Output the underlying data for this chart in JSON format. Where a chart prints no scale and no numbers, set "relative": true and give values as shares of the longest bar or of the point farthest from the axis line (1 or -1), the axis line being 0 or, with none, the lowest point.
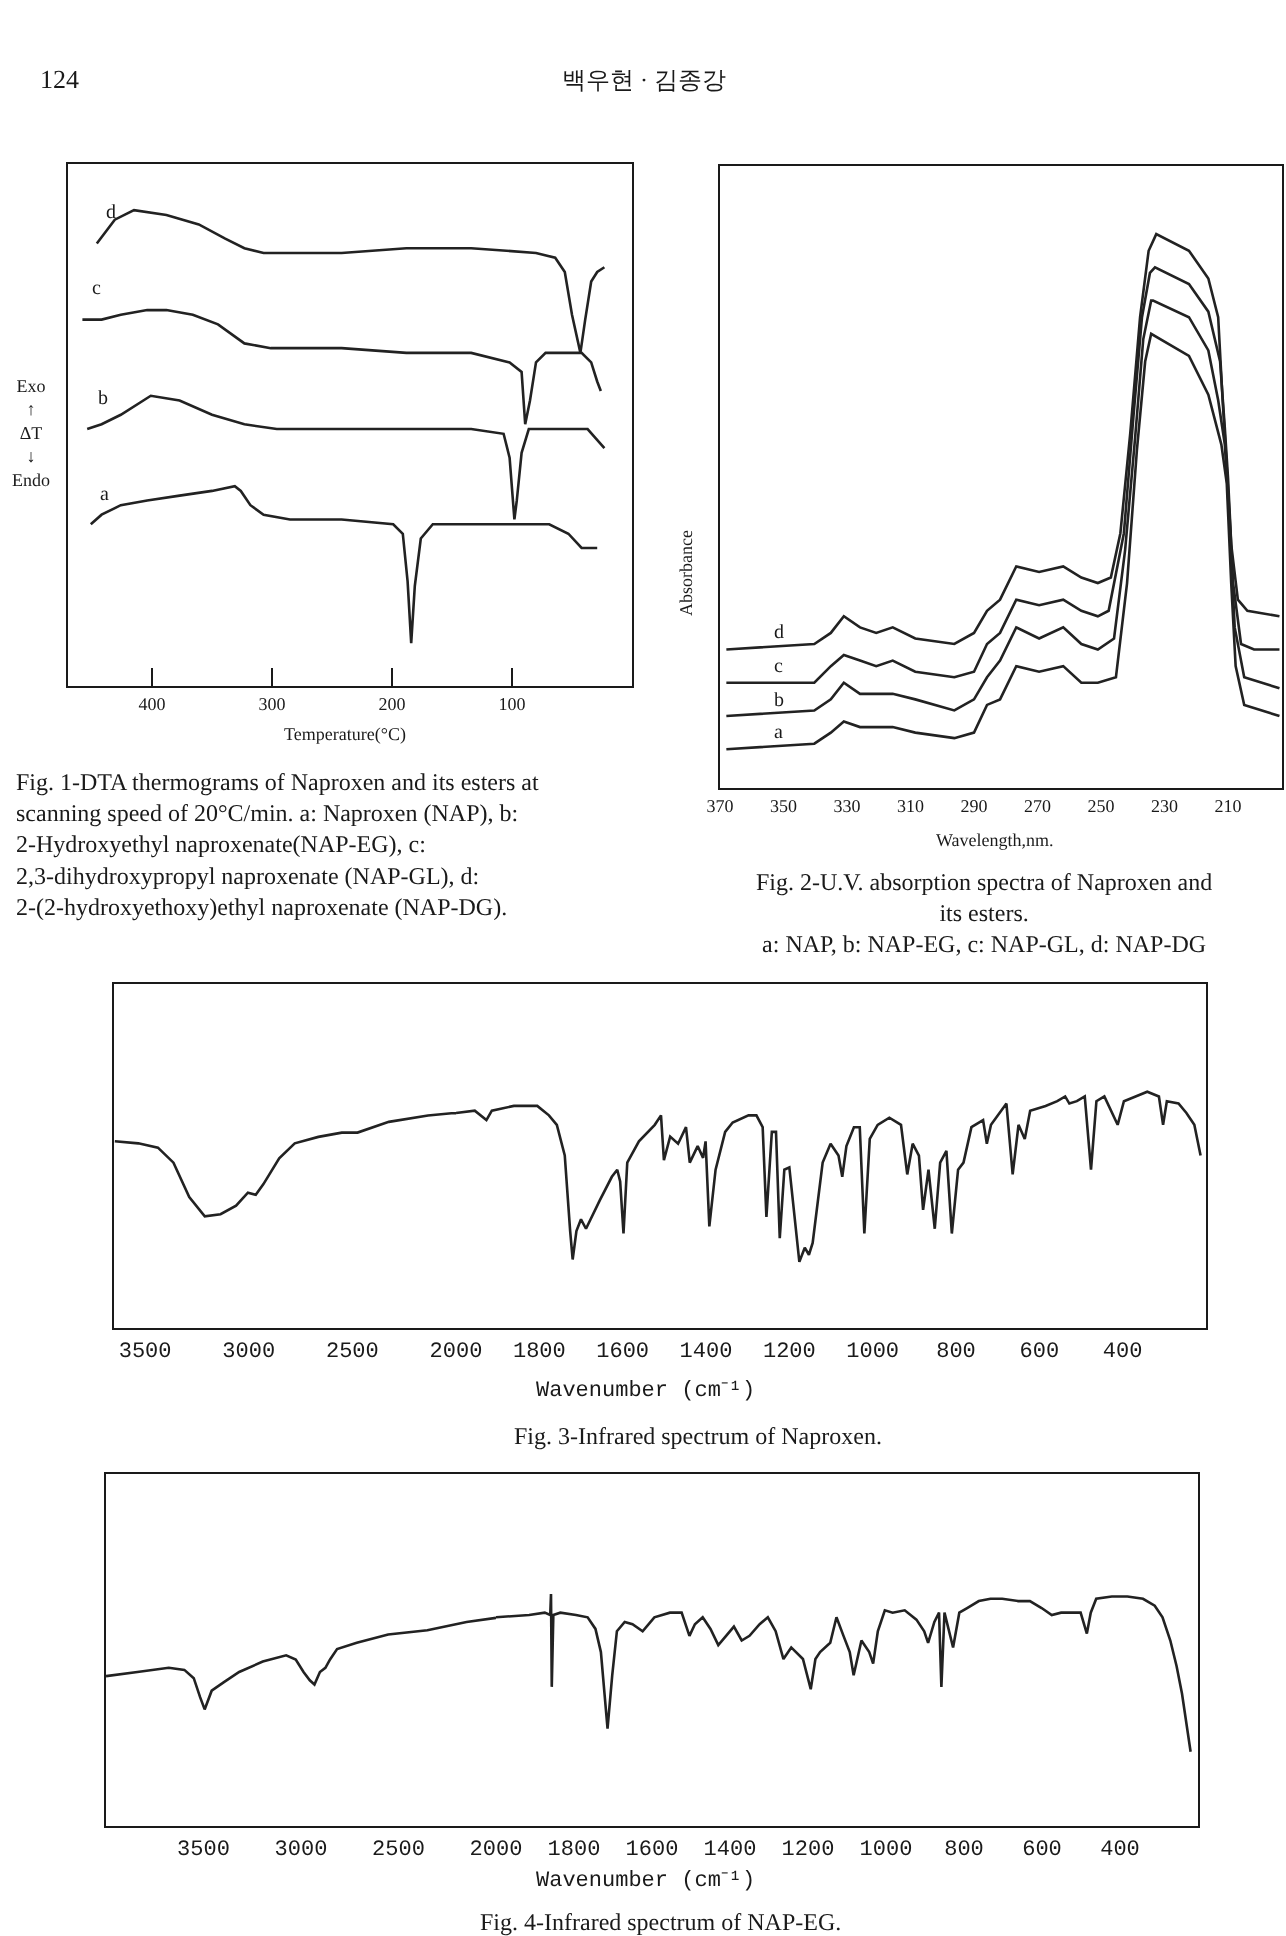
{
  "chart_data": [
    {
      "type": "other",
      "annotations": [
        "124",
        "백우현 · 김종강"
      ]
    },
    {
      "type": "line",
      "xlabel": "Temperature(°C)",
      "ylabel": "Exo\n↑\nΔT\n↓\nEndo",
      "xlim": [
        470,
        0
      ],
      "xticks": [
        400,
        300,
        200,
        100
      ],
      "relative": true,
      "series": [
        {
          "name": "a",
          "color": "#222222",
          "x": [
            451,
            442,
            426,
            404,
            377,
            350,
            331,
            326,
            318,
            307,
            285,
            242,
            199,
            191,
            187,
            184,
            181,
            176,
            166,
            134,
            69,
            53,
            42,
            29
          ],
          "values": [
            0.34,
            0.36,
            0.38,
            0.39,
            0.4,
            0.41,
            0.42,
            0.41,
            0.38,
            0.36,
            0.35,
            0.35,
            0.34,
            0.32,
            0.22,
            0.09,
            0.21,
            0.31,
            0.34,
            0.34,
            0.34,
            0.32,
            0.29,
            0.29
          ]
        },
        {
          "name": "b",
          "color": "#222222",
          "x": [
            454,
            442,
            426,
            401,
            377,
            350,
            323,
            296,
            242,
            188,
            134,
            107,
            102,
            98,
            96,
            92,
            86,
            80,
            37,
            30,
            23
          ],
          "values": [
            0.54,
            0.55,
            0.57,
            0.61,
            0.6,
            0.57,
            0.55,
            0.54,
            0.54,
            0.54,
            0.54,
            0.53,
            0.48,
            0.35,
            0.39,
            0.49,
            0.54,
            0.54,
            0.54,
            0.52,
            0.5
          ]
        },
        {
          "name": "c",
          "color": "#222222",
          "x": [
            458,
            442,
            426,
            404,
            388,
            366,
            345,
            323,
            301,
            242,
            188,
            134,
            102,
            92,
            89,
            85,
            80,
            72,
            42,
            34,
            29,
            26
          ],
          "values": [
            0.77,
            0.77,
            0.78,
            0.79,
            0.79,
            0.78,
            0.76,
            0.72,
            0.71,
            0.71,
            0.7,
            0.7,
            0.68,
            0.66,
            0.55,
            0.6,
            0.68,
            0.7,
            0.7,
            0.68,
            0.64,
            0.62
          ]
        },
        {
          "name": "d",
          "color": "#222222",
          "x": [
            446,
            431,
            415,
            388,
            361,
            339,
            323,
            307,
            242,
            188,
            134,
            80,
            64,
            56,
            50,
            43,
            39,
            34,
            29,
            23
          ],
          "values": [
            0.93,
            0.98,
            1.0,
            0.99,
            0.97,
            0.94,
            0.92,
            0.91,
            0.91,
            0.92,
            0.92,
            0.91,
            0.9,
            0.87,
            0.78,
            0.7,
            0.77,
            0.85,
            0.87,
            0.88
          ]
        }
      ],
      "annotations": [
        "Fig. 1-DTA thermograms of Naproxen and its esters at scanning speed of 20°C/min. a: Naproxen (NAP), b: 2-Hydroxyethyl naproxenate(NAP-EG), c: 2,3-dihydroxypropyl naproxenate (NAP-GL), d: 2-(2-hydroxyethoxy)ethyl naproxenate (NAP-DG)."
      ]
    },
    {
      "type": "line",
      "xlabel": "Wavelength,nm.",
      "ylabel": "Absorbance",
      "xlim": [
        370,
        193
      ],
      "xticks": [
        370,
        350,
        330,
        310,
        290,
        270,
        250,
        230,
        210
      ],
      "relative": true,
      "series": [
        {
          "name": "a",
          "color": "#222222",
          "x": [
            368.0,
            340.3,
            335.1,
            331.0,
            325.9,
            320.8,
            315.6,
            308.5,
            296.2,
            290.0,
            285.9,
            281.8,
            276.7,
            269.5,
            261.9,
            256.2,
            251.0,
            245.3,
            241.8,
            238.7,
            236.1,
            234.2,
            222.3,
            216.2,
            212.1,
            210.4,
            209.0,
            207.6,
            204.9,
            193.8
          ],
          "values": [
            0.07,
            0.08,
            0.1,
            0.12,
            0.11,
            0.11,
            0.11,
            0.1,
            0.09,
            0.1,
            0.15,
            0.16,
            0.22,
            0.21,
            0.22,
            0.19,
            0.19,
            0.2,
            0.37,
            0.61,
            0.77,
            0.82,
            0.78,
            0.71,
            0.62,
            0.55,
            0.37,
            0.22,
            0.15,
            0.13
          ]
        },
        {
          "name": "b",
          "color": "#222222",
          "x": [
            368.0,
            340.3,
            335.1,
            331.0,
            325.9,
            320.8,
            315.6,
            308.5,
            296.2,
            290.0,
            285.9,
            281.8,
            276.7,
            269.5,
            261.9,
            256.2,
            251.0,
            245.9,
            242.4,
            239.3,
            236.7,
            234.2,
            233.6,
            222.3,
            216.2,
            213.1,
            211.0,
            209.6,
            207.9,
            204.9,
            193.8
          ],
          "values": [
            0.13,
            0.14,
            0.16,
            0.19,
            0.17,
            0.17,
            0.17,
            0.16,
            0.14,
            0.16,
            0.2,
            0.23,
            0.29,
            0.27,
            0.29,
            0.26,
            0.25,
            0.27,
            0.43,
            0.63,
            0.81,
            0.88,
            0.88,
            0.85,
            0.79,
            0.7,
            0.62,
            0.49,
            0.29,
            0.2,
            0.18
          ]
        },
        {
          "name": "c",
          "color": "#222222",
          "x": [
            368.0,
            340.3,
            335.1,
            331.0,
            325.9,
            320.8,
            315.6,
            308.5,
            296.2,
            290.0,
            285.9,
            281.8,
            276.7,
            269.5,
            261.9,
            256.2,
            251.0,
            247.6,
            242.8,
            239.8,
            237.1,
            234.6,
            233.0,
            222.3,
            216.2,
            212.5,
            211.0,
            210.0,
            208.4,
            205.9,
            201.8,
            193.8
          ],
          "values": [
            0.19,
            0.19,
            0.22,
            0.24,
            0.23,
            0.22,
            0.23,
            0.21,
            0.2,
            0.21,
            0.26,
            0.28,
            0.34,
            0.33,
            0.34,
            0.32,
            0.31,
            0.32,
            0.46,
            0.67,
            0.85,
            0.93,
            0.94,
            0.91,
            0.86,
            0.77,
            0.65,
            0.56,
            0.37,
            0.26,
            0.25,
            0.25
          ]
        },
        {
          "name": "d",
          "color": "#222222",
          "x": [
            368.0,
            340.3,
            335.1,
            331.0,
            325.9,
            320.8,
            315.6,
            308.5,
            296.2,
            290.0,
            285.9,
            281.8,
            276.7,
            269.5,
            261.9,
            256.2,
            251.0,
            246.9,
            243.9,
            240.8,
            237.7,
            235.0,
            232.6,
            222.3,
            216.2,
            213.1,
            211.7,
            210.4,
            209.0,
            206.9,
            203.9,
            193.8
          ],
          "values": [
            0.25,
            0.26,
            0.28,
            0.31,
            0.29,
            0.28,
            0.29,
            0.27,
            0.26,
            0.28,
            0.32,
            0.34,
            0.4,
            0.39,
            0.4,
            0.38,
            0.37,
            0.38,
            0.46,
            0.64,
            0.85,
            0.97,
            1.0,
            0.97,
            0.92,
            0.85,
            0.7,
            0.58,
            0.44,
            0.34,
            0.32,
            0.31
          ]
        }
      ],
      "annotations": [
        "Fig. 2-U.V. absorption spectra of Naproxen and its esters.",
        "a: NAP, b: NAP-EG, c: NAP-GL, d: NAP-DG"
      ]
    },
    {
      "type": "line",
      "xlim": [
        3650,
        2000
      ],
      "xticks": [
        3500,
        3000,
        2500,
        2000
      ],
      "relative": true,
      "series": [
        {
          "color": "#222222",
          "x": [
            3646,
            3533,
            3438,
            3363,
            3287,
            3212,
            3136,
            3061,
            3004,
            2966,
            2929,
            2853,
            2778,
            2664,
            2551,
            2475,
            2324,
            2135,
            2022,
            2000
          ],
          "values": [
            0.87,
            0.86,
            0.84,
            0.77,
            0.61,
            0.52,
            0.53,
            0.57,
            0.63,
            0.62,
            0.67,
            0.79,
            0.86,
            0.89,
            0.91,
            0.91,
            0.96,
            0.99,
            1.0,
            1.0
          ]
        }
      ]
    },
    {
      "type": "line",
      "xlabel": "Wavenumber (cm⁻¹)",
      "xlim": [
        2000,
        200
      ],
      "xticks": [
        1800,
        1600,
        1400,
        1200,
        1000,
        800,
        600,
        400
      ],
      "relative": true,
      "series": [
        {
          "color": "#222222",
          "x": [
            2000,
            1955,
            1927,
            1914,
            1861,
            1805,
            1777,
            1758,
            1739,
            1726,
            1720,
            1711,
            1700,
            1688,
            1655,
            1626,
            1613,
            1606,
            1598,
            1589,
            1561,
            1523,
            1508,
            1501,
            1486,
            1467,
            1448,
            1439,
            1420,
            1407,
            1401,
            1392,
            1377,
            1354,
            1336,
            1298,
            1279,
            1264,
            1255,
            1242,
            1232,
            1223,
            1212,
            1200,
            1176,
            1163,
            1153,
            1144,
            1120,
            1101,
            1082,
            1073,
            1063,
            1045,
            1031,
            1020,
            1007,
            988,
            960,
            932,
            917,
            904,
            889,
            879,
            866,
            851,
            838,
            823,
            810,
            795,
            782,
            763,
            735,
            726,
            716,
            679,
            664,
            650,
            635,
            622,
            585,
            557,
            538,
            528,
            510,
            491,
            476,
            463,
            444,
            412,
            397,
            369,
            341,
            313,
            303,
            294,
            266,
            247,
            228,
            213
          ],
          "values": [
            0.91,
            0.92,
            0.88,
            0.92,
            0.94,
            0.94,
            0.9,
            0.86,
            0.73,
            0.41,
            0.29,
            0.41,
            0.46,
            0.42,
            0.54,
            0.64,
            0.67,
            0.62,
            0.4,
            0.7,
            0.79,
            0.86,
            0.9,
            0.71,
            0.81,
            0.78,
            0.85,
            0.7,
            0.77,
            0.72,
            0.79,
            0.43,
            0.67,
            0.83,
            0.87,
            0.9,
            0.9,
            0.85,
            0.47,
            0.83,
            0.83,
            0.38,
            0.67,
            0.68,
            0.28,
            0.34,
            0.31,
            0.36,
            0.7,
            0.78,
            0.73,
            0.64,
            0.77,
            0.85,
            0.85,
            0.4,
            0.8,
            0.86,
            0.89,
            0.86,
            0.65,
            0.78,
            0.73,
            0.5,
            0.67,
            0.42,
            0.7,
            0.75,
            0.4,
            0.67,
            0.7,
            0.85,
            0.88,
            0.78,
            0.86,
            0.95,
            0.65,
            0.86,
            0.8,
            0.92,
            0.94,
            0.96,
            0.98,
            0.95,
            0.96,
            0.98,
            0.67,
            0.96,
            0.98,
            0.86,
            0.96,
            0.98,
            1.0,
            0.98,
            0.86,
            0.96,
            0.95,
            0.91,
            0.86,
            0.73
          ]
        }
      ],
      "annotations": [
        "Fig. 3-Infrared spectrum of Naproxen."
      ]
    },
    {
      "type": "line",
      "xlim": [
        4000,
        2000
      ],
      "xticks": [
        3500,
        3000,
        2500,
        2000
      ],
      "relative": true,
      "series": [
        {
          "color": "#222222",
          "x": [
            4000,
            3839,
            3678,
            3598,
            3550,
            3518,
            3494,
            3458,
            3397,
            3317,
            3196,
            3076,
            3027,
            2987,
            2955,
            2931,
            2903,
            2875,
            2851,
            2815,
            2714,
            2553,
            2352,
            2151,
            2000
          ],
          "values": [
            0.72,
            0.74,
            0.76,
            0.75,
            0.71,
            0.62,
            0.56,
            0.65,
            0.69,
            0.74,
            0.79,
            0.82,
            0.8,
            0.74,
            0.7,
            0.68,
            0.74,
            0.76,
            0.8,
            0.85,
            0.88,
            0.92,
            0.94,
            0.98,
            1.0
          ]
        }
      ]
    },
    {
      "type": "line",
      "xlabel": "Wavenumber (cm⁻¹)",
      "xlim": [
        2000,
        200
      ],
      "xticks": [
        1800,
        1600,
        1400,
        1200,
        1000,
        800,
        600,
        400
      ],
      "relative": true,
      "series": [
        {
          "color": "#222222",
          "x": [
            2000,
            1915,
            1875,
            1861,
            1859,
            1857,
            1853,
            1835,
            1795,
            1765,
            1745,
            1731,
            1714,
            1702,
            1690,
            1670,
            1650,
            1624,
            1594,
            1554,
            1524,
            1504,
            1490,
            1470,
            1450,
            1430,
            1410,
            1390,
            1370,
            1350,
            1324,
            1303,
            1283,
            1263,
            1243,
            1213,
            1193,
            1181,
            1169,
            1143,
            1127,
            1109,
            1093,
            1083,
            1063,
            1043,
            1033,
            1021,
            1003,
            983,
            952,
            922,
            902,
            892,
            876,
            864,
            858,
            850,
            828,
            812,
            792,
            762,
            732,
            702,
            661,
            631,
            601,
            575,
            551,
            521,
            501,
            485,
            475,
            461,
            421,
            381,
            341,
            311,
            291,
            271,
            255,
            241,
            219
          ],
          "values": [
            0.9,
            0.91,
            0.92,
            0.91,
            1.0,
            0.6,
            0.91,
            0.92,
            0.91,
            0.9,
            0.85,
            0.75,
            0.42,
            0.65,
            0.84,
            0.88,
            0.87,
            0.84,
            0.9,
            0.92,
            0.92,
            0.82,
            0.87,
            0.9,
            0.85,
            0.78,
            0.82,
            0.86,
            0.8,
            0.82,
            0.87,
            0.9,
            0.84,
            0.72,
            0.77,
            0.72,
            0.59,
            0.72,
            0.75,
            0.79,
            0.9,
            0.82,
            0.75,
            0.65,
            0.8,
            0.75,
            0.7,
            0.84,
            0.93,
            0.92,
            0.93,
            0.89,
            0.84,
            0.79,
            0.88,
            0.92,
            0.6,
            0.92,
            0.77,
            0.92,
            0.94,
            0.97,
            0.98,
            0.98,
            0.97,
            0.97,
            0.94,
            0.91,
            0.92,
            0.92,
            0.92,
            0.83,
            0.92,
            0.98,
            0.99,
            0.99,
            0.98,
            0.95,
            0.9,
            0.8,
            0.69,
            0.57,
            0.32
          ]
        }
      ],
      "annotations": [
        "Fig. 4-Infrared spectrum of NAP-EG."
      ]
    }
  ]
}
